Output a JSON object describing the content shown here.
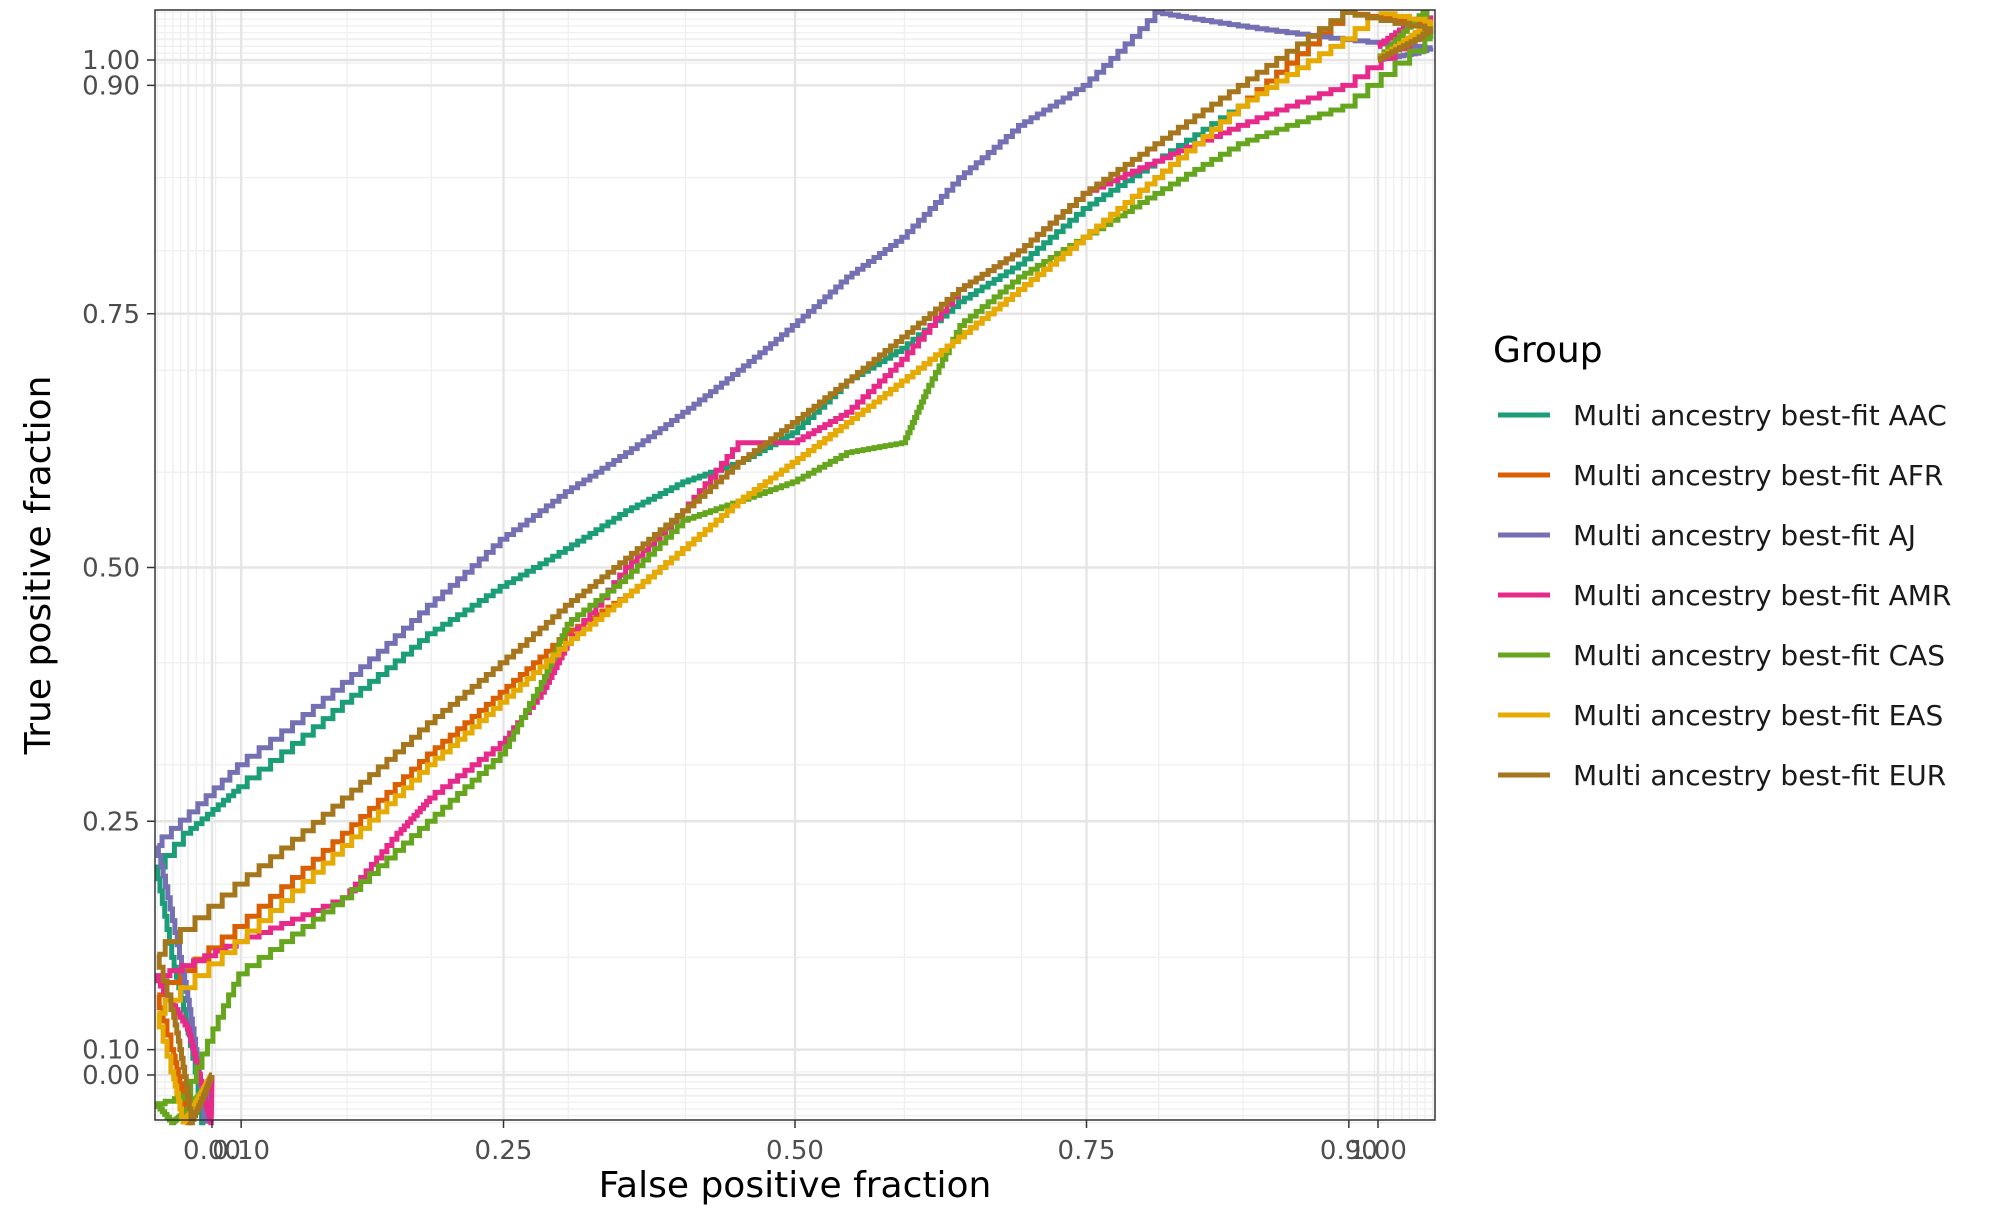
{
  "chart_data": {
    "type": "line",
    "title": "",
    "xlabel": "False positive fraction",
    "ylabel": "True positive fraction",
    "xlim": [
      0,
      1
    ],
    "ylim": [
      0,
      1
    ],
    "scale": "probit-like (ROC style)",
    "x_ticks": [
      0.0,
      0.1,
      0.25,
      0.5,
      0.75,
      0.9,
      1.0
    ],
    "x_tick_labels": [
      "0.00",
      "0.10",
      "0.25",
      "0.50",
      "0.75",
      "0.90",
      "1.00"
    ],
    "y_ticks": [
      0.0,
      0.1,
      0.25,
      0.5,
      0.75,
      0.9,
      1.0
    ],
    "y_tick_labels": [
      "0.00",
      "0.10",
      "0.25",
      "0.50",
      "0.75",
      "0.90",
      "1.00"
    ],
    "grid": true,
    "legend_title": "Group",
    "legend_position": "right",
    "series": [
      {
        "name": "Multi ancestry best-fit AAC",
        "color": "#1b9e77",
        "points": [
          [
            0,
            0
          ],
          [
            0.005,
            0.05
          ],
          [
            0.02,
            0.09
          ],
          [
            0.05,
            0.15
          ],
          [
            0.08,
            0.24
          ],
          [
            0.1,
            0.28
          ],
          [
            0.15,
            0.36
          ],
          [
            0.2,
            0.43
          ],
          [
            0.25,
            0.48
          ],
          [
            0.3,
            0.52
          ],
          [
            0.35,
            0.56
          ],
          [
            0.4,
            0.59
          ],
          [
            0.45,
            0.61
          ],
          [
            0.5,
            0.64
          ],
          [
            0.55,
            0.69
          ],
          [
            0.6,
            0.72
          ],
          [
            0.65,
            0.76
          ],
          [
            0.7,
            0.79
          ],
          [
            0.75,
            0.83
          ],
          [
            0.8,
            0.86
          ],
          [
            0.85,
            0.89
          ],
          [
            0.9,
            0.93
          ],
          [
            0.95,
            0.97
          ],
          [
            1.0,
            1.0
          ]
        ]
      },
      {
        "name": "Multi ancestry best-fit AFR",
        "color": "#d95f02",
        "points": [
          [
            0,
            0
          ],
          [
            0.01,
            0.03
          ],
          [
            0.03,
            0.07
          ],
          [
            0.05,
            0.1
          ],
          [
            0.1,
            0.17
          ],
          [
            0.15,
            0.24
          ],
          [
            0.2,
            0.31
          ],
          [
            0.25,
            0.37
          ],
          [
            0.3,
            0.43
          ],
          [
            0.35,
            0.47
          ],
          [
            0.4,
            0.52
          ],
          [
            0.45,
            0.57
          ],
          [
            0.5,
            0.61
          ],
          [
            0.55,
            0.65
          ],
          [
            0.6,
            0.69
          ],
          [
            0.65,
            0.73
          ],
          [
            0.7,
            0.77
          ],
          [
            0.75,
            0.81
          ],
          [
            0.8,
            0.85
          ],
          [
            0.85,
            0.89
          ],
          [
            0.9,
            0.93
          ],
          [
            0.95,
            0.96
          ],
          [
            1.0,
            1.0
          ]
        ]
      },
      {
        "name": "Multi ancestry best-fit AJ",
        "color": "#7570b3",
        "points": [
          [
            0,
            0
          ],
          [
            0.005,
            0.06
          ],
          [
            0.02,
            0.1
          ],
          [
            0.04,
            0.15
          ],
          [
            0.07,
            0.23
          ],
          [
            0.1,
            0.3
          ],
          [
            0.15,
            0.38
          ],
          [
            0.2,
            0.46
          ],
          [
            0.25,
            0.53
          ],
          [
            0.3,
            0.58
          ],
          [
            0.35,
            0.62
          ],
          [
            0.4,
            0.66
          ],
          [
            0.45,
            0.7
          ],
          [
            0.5,
            0.74
          ],
          [
            0.55,
            0.78
          ],
          [
            0.6,
            0.81
          ],
          [
            0.65,
            0.85
          ],
          [
            0.7,
            0.88
          ],
          [
            0.75,
            0.9
          ],
          [
            0.8,
            0.93
          ],
          [
            0.85,
            0.95
          ],
          [
            0.9,
            0.97
          ],
          [
            0.95,
            0.99
          ],
          [
            1.0,
            1.0
          ]
        ]
      },
      {
        "name": "Multi ancestry best-fit AMR",
        "color": "#e7298a",
        "points": [
          [
            0,
            0
          ],
          [
            0.001,
            0.07
          ],
          [
            0.01,
            0.08
          ],
          [
            0.03,
            0.11
          ],
          [
            0.06,
            0.13
          ],
          [
            0.1,
            0.16
          ],
          [
            0.15,
            0.19
          ],
          [
            0.18,
            0.24
          ],
          [
            0.2,
            0.27
          ],
          [
            0.25,
            0.32
          ],
          [
            0.28,
            0.37
          ],
          [
            0.3,
            0.42
          ],
          [
            0.35,
            0.5
          ],
          [
            0.4,
            0.56
          ],
          [
            0.45,
            0.63
          ],
          [
            0.5,
            0.63
          ],
          [
            0.55,
            0.66
          ],
          [
            0.6,
            0.71
          ],
          [
            0.65,
            0.77
          ],
          [
            0.7,
            0.8
          ],
          [
            0.75,
            0.84
          ],
          [
            0.8,
            0.86
          ],
          [
            0.85,
            0.88
          ],
          [
            0.9,
            0.9
          ],
          [
            0.95,
            0.94
          ],
          [
            1.0,
            0.98
          ]
        ]
      },
      {
        "name": "Multi ancestry best-fit CAS",
        "color": "#66a61e",
        "points": [
          [
            0,
            0
          ],
          [
            0.01,
            0.02
          ],
          [
            0.03,
            0.05
          ],
          [
            0.05,
            0.07
          ],
          [
            0.08,
            0.08
          ],
          [
            0.1,
            0.14
          ],
          [
            0.15,
            0.19
          ],
          [
            0.2,
            0.25
          ],
          [
            0.25,
            0.31
          ],
          [
            0.28,
            0.38
          ],
          [
            0.3,
            0.44
          ],
          [
            0.35,
            0.49
          ],
          [
            0.4,
            0.55
          ],
          [
            0.45,
            0.57
          ],
          [
            0.5,
            0.59
          ],
          [
            0.55,
            0.62
          ],
          [
            0.6,
            0.63
          ],
          [
            0.62,
            0.68
          ],
          [
            0.65,
            0.74
          ],
          [
            0.7,
            0.78
          ],
          [
            0.75,
            0.81
          ],
          [
            0.8,
            0.84
          ],
          [
            0.85,
            0.87
          ],
          [
            0.9,
            0.89
          ],
          [
            0.95,
            0.94
          ],
          [
            1.0,
            1.0
          ]
        ]
      },
      {
        "name": "Multi ancestry best-fit EAS",
        "color": "#e6ab02",
        "points": [
          [
            0,
            0
          ],
          [
            0.01,
            0.02
          ],
          [
            0.03,
            0.06
          ],
          [
            0.05,
            0.09
          ],
          [
            0.1,
            0.16
          ],
          [
            0.15,
            0.23
          ],
          [
            0.2,
            0.3
          ],
          [
            0.25,
            0.36
          ],
          [
            0.3,
            0.42
          ],
          [
            0.35,
            0.47
          ],
          [
            0.4,
            0.52
          ],
          [
            0.45,
            0.57
          ],
          [
            0.5,
            0.61
          ],
          [
            0.55,
            0.65
          ],
          [
            0.6,
            0.69
          ],
          [
            0.65,
            0.73
          ],
          [
            0.7,
            0.77
          ],
          [
            0.75,
            0.81
          ],
          [
            0.8,
            0.85
          ],
          [
            0.85,
            0.89
          ],
          [
            0.9,
            0.92
          ],
          [
            0.95,
            0.96
          ],
          [
            1.0,
            1.0
          ]
        ]
      },
      {
        "name": "Multi ancestry best-fit EUR",
        "color": "#a6761d",
        "points": [
          [
            0,
            0
          ],
          [
            0.01,
            0.03
          ],
          [
            0.03,
            0.08
          ],
          [
            0.05,
            0.12
          ],
          [
            0.1,
            0.2
          ],
          [
            0.15,
            0.27
          ],
          [
            0.2,
            0.34
          ],
          [
            0.25,
            0.4
          ],
          [
            0.3,
            0.46
          ],
          [
            0.35,
            0.51
          ],
          [
            0.4,
            0.56
          ],
          [
            0.45,
            0.61
          ],
          [
            0.5,
            0.65
          ],
          [
            0.55,
            0.69
          ],
          [
            0.6,
            0.73
          ],
          [
            0.65,
            0.77
          ],
          [
            0.7,
            0.8
          ],
          [
            0.75,
            0.84
          ],
          [
            0.8,
            0.87
          ],
          [
            0.85,
            0.9
          ],
          [
            0.9,
            0.93
          ],
          [
            0.95,
            0.97
          ],
          [
            1.0,
            1.0
          ]
        ]
      }
    ]
  }
}
